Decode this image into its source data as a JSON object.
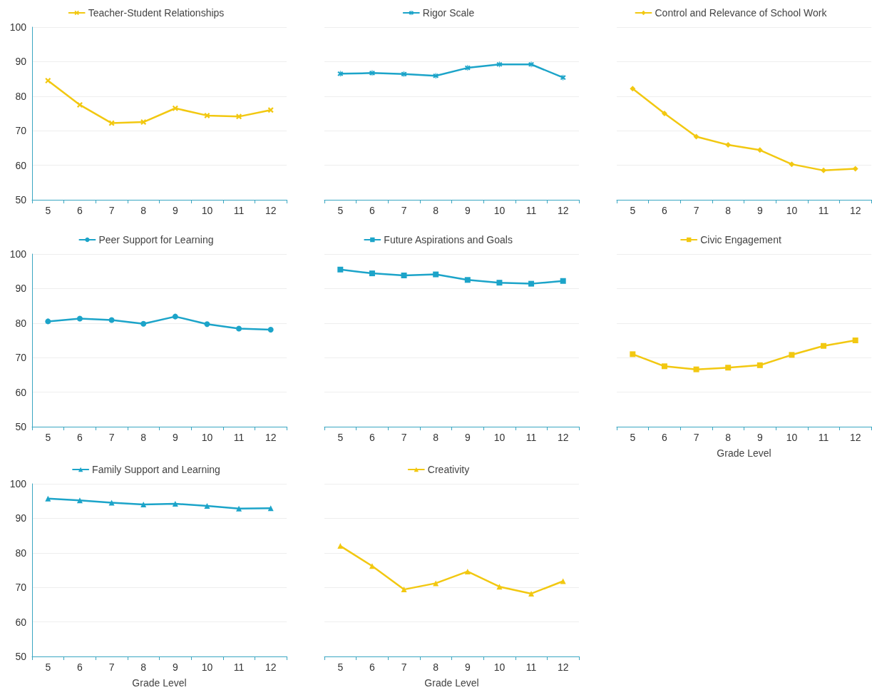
{
  "chart_data": [
    {
      "type": "line",
      "categories": [
        "5",
        "6",
        "7",
        "8",
        "9",
        "10",
        "11",
        "12"
      ],
      "series": [
        {
          "name": "Teacher-Student Relationships",
          "color": "#f2c811",
          "values": [
            84.5,
            77.5,
            72.2,
            72.5,
            76.5,
            74.4,
            74.1,
            76.0
          ]
        }
      ],
      "ylim": [
        50,
        100
      ],
      "yticks": [
        50,
        60,
        70,
        80,
        90,
        100
      ],
      "grid": "y",
      "legend": "top",
      "marker": "cross"
    },
    {
      "type": "line",
      "categories": [
        "5",
        "6",
        "7",
        "8",
        "9",
        "10",
        "11",
        "12"
      ],
      "series": [
        {
          "name": "Rigor Scale",
          "color": "#1ca4c9",
          "values": [
            86.5,
            86.7,
            86.4,
            85.9,
            88.2,
            89.2,
            89.2,
            85.4
          ]
        }
      ],
      "ylim": [
        50,
        100
      ],
      "yticks": [
        50,
        60,
        70,
        80,
        90,
        100
      ],
      "grid": "y",
      "legend": "top",
      "marker": "star",
      "tick_labels": "x"
    },
    {
      "type": "line",
      "categories": [
        "5",
        "6",
        "7",
        "8",
        "9",
        "10",
        "11",
        "12"
      ],
      "series": [
        {
          "name": "Control and Relevance of School Work",
          "color": "#f2c811",
          "values": [
            82.2,
            75.0,
            68.3,
            65.9,
            64.4,
            60.3,
            58.5,
            59.0
          ]
        }
      ],
      "ylim": [
        50,
        100
      ],
      "yticks": [
        50,
        60,
        70,
        80,
        90,
        100
      ],
      "grid": "y",
      "legend": "top",
      "marker": "diamond",
      "tick_labels": "x"
    },
    {
      "type": "line",
      "categories": [
        "5",
        "6",
        "7",
        "8",
        "9",
        "10",
        "11",
        "12"
      ],
      "series": [
        {
          "name": "Peer Support for Learning",
          "color": "#1ca4c9",
          "values": [
            80.5,
            81.3,
            80.9,
            79.8,
            81.9,
            79.7,
            78.4,
            78.1
          ]
        }
      ],
      "ylim": [
        50,
        100
      ],
      "yticks": [
        50,
        60,
        70,
        80,
        90,
        100
      ],
      "grid": "y",
      "legend": "top",
      "marker": "circle"
    },
    {
      "type": "line",
      "categories": [
        "5",
        "6",
        "7",
        "8",
        "9",
        "10",
        "11",
        "12"
      ],
      "series": [
        {
          "name": "Future Aspirations and Goals",
          "color": "#1ca4c9",
          "values": [
            95.5,
            94.4,
            93.8,
            94.1,
            92.5,
            91.7,
            91.4,
            92.2
          ]
        }
      ],
      "ylim": [
        50,
        100
      ],
      "yticks": [
        50,
        60,
        70,
        80,
        90,
        100
      ],
      "grid": "y",
      "legend": "top",
      "marker": "square",
      "tick_labels": "x"
    },
    {
      "type": "line",
      "categories": [
        "5",
        "6",
        "7",
        "8",
        "9",
        "10",
        "11",
        "12"
      ],
      "series": [
        {
          "name": "Civic Engagement",
          "color": "#f2c811",
          "values": [
            71.0,
            67.5,
            66.6,
            67.1,
            67.8,
            70.8,
            73.4,
            75.0
          ]
        }
      ],
      "ylim": [
        50,
        100
      ],
      "yticks": [
        50,
        60,
        70,
        80,
        90,
        100
      ],
      "grid": "y",
      "legend": "top",
      "marker": "square",
      "tick_labels": "x",
      "xlabel": "Grade Level"
    },
    {
      "type": "line",
      "categories": [
        "5",
        "6",
        "7",
        "8",
        "9",
        "10",
        "11",
        "12"
      ],
      "series": [
        {
          "name": "Family Support and Learning",
          "color": "#1ca4c9",
          "values": [
            95.7,
            95.2,
            94.5,
            94.0,
            94.2,
            93.6,
            92.8,
            92.9
          ]
        }
      ],
      "ylim": [
        50,
        100
      ],
      "yticks": [
        50,
        60,
        70,
        80,
        90,
        100
      ],
      "grid": "y",
      "legend": "top",
      "marker": "triangle",
      "xlabel": "Grade Level"
    },
    {
      "type": "line",
      "categories": [
        "5",
        "6",
        "7",
        "8",
        "9",
        "10",
        "11",
        "12"
      ],
      "series": [
        {
          "name": "Creativity",
          "color": "#f2c811",
          "values": [
            82.0,
            76.2,
            69.4,
            71.2,
            74.6,
            70.2,
            68.2,
            71.8
          ]
        }
      ],
      "ylim": [
        50,
        100
      ],
      "yticks": [
        50,
        60,
        70,
        80,
        90,
        100
      ],
      "grid": "y",
      "legend": "top",
      "marker": "triangle",
      "tick_labels": "x",
      "xlabel": "Grade Level"
    }
  ]
}
